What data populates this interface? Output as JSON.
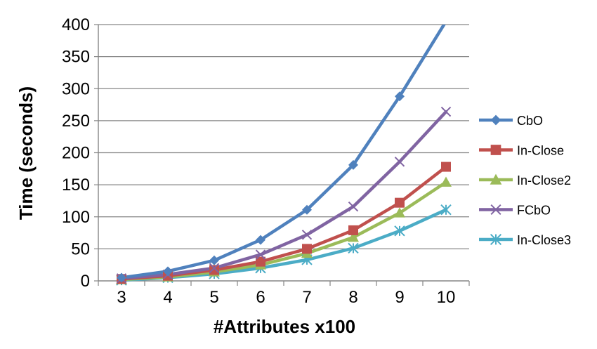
{
  "chart_data": {
    "type": "line",
    "x": [
      3,
      4,
      5,
      6,
      7,
      8,
      9,
      10
    ],
    "xlabel": "#Attributes x100",
    "ylabel": "Time (seconds)",
    "ylim": [
      0,
      400
    ],
    "yticks": [
      0,
      50,
      100,
      150,
      200,
      250,
      300,
      350,
      400
    ],
    "grid": "horizontal",
    "legend_position": "right",
    "series": [
      {
        "name": "CbO",
        "color": "#4f81bd",
        "marker": "diamond",
        "values": [
          5,
          15,
          32,
          64,
          111,
          181,
          288,
          405
        ]
      },
      {
        "name": "In-Close",
        "color": "#c0504d",
        "marker": "square",
        "values": [
          3,
          8,
          17,
          30,
          50,
          79,
          122,
          178
        ]
      },
      {
        "name": "In-Close2",
        "color": "#9bbb59",
        "marker": "triangle",
        "values": [
          2,
          6,
          14,
          25,
          43,
          68,
          106,
          154
        ]
      },
      {
        "name": "FCbO",
        "color": "#8064a2",
        "marker": "x",
        "values": [
          4,
          10,
          20,
          41,
          72,
          116,
          186,
          264
        ]
      },
      {
        "name": "In-Close3",
        "color": "#4bacc6",
        "marker": "asterisk",
        "values": [
          1,
          5,
          11,
          20,
          33,
          51,
          78,
          111
        ]
      }
    ]
  }
}
